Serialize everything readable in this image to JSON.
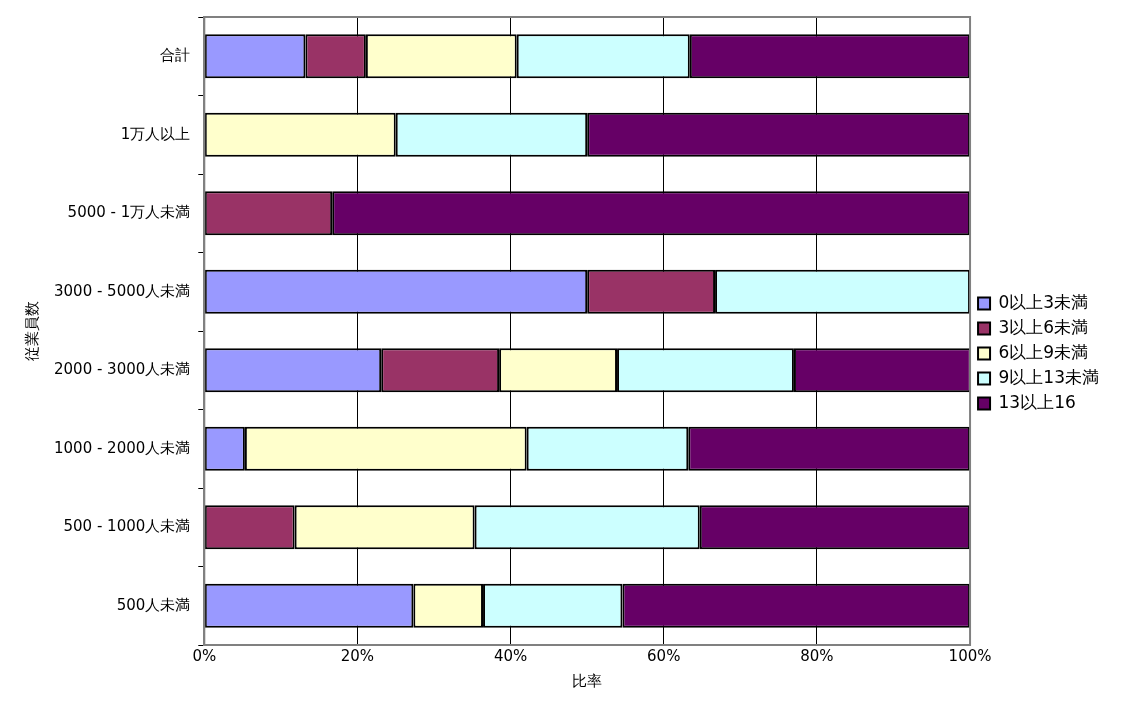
{
  "chart_data": {
    "type": "bar",
    "orientation": "horizontal",
    "stacked": true,
    "xlabel": "比率",
    "ylabel": "従業員数",
    "categories": [
      "合計",
      "1万人以上",
      "5000 - 1万人未満",
      "3000 - 5000人未満",
      "2000 - 3000人未満",
      "1000 - 2000人未満",
      "500 - 1000人未満",
      "500人未満"
    ],
    "series": [
      {
        "name": "0以上3未満",
        "color": "#9999ff",
        "values": [
          13.2,
          0,
          0,
          50,
          23.1,
          5.3,
          0,
          27.3
        ]
      },
      {
        "name": "3以上6未満",
        "color": "#993366",
        "values": [
          7.9,
          0,
          16.7,
          16.7,
          15.4,
          0,
          11.8,
          0
        ]
      },
      {
        "name": "6以上9未満",
        "color": "#ffffcc",
        "values": [
          19.7,
          25,
          0,
          0,
          15.4,
          36.8,
          23.5,
          9.1
        ]
      },
      {
        "name": "9以上13未満",
        "color": "#ccffff",
        "values": [
          22.6,
          25,
          0,
          33.3,
          23.1,
          21.1,
          29.4,
          18.2
        ]
      },
      {
        "name": "13以上16",
        "color": "#660066",
        "values": [
          36.6,
          50,
          83.3,
          0,
          23.1,
          36.8,
          35.3,
          45.4
        ]
      }
    ],
    "xlim": [
      0,
      100
    ],
    "xticks": [
      {
        "value": 0,
        "label": "0%"
      },
      {
        "value": 20,
        "label": "20%"
      },
      {
        "value": 40,
        "label": "40%"
      },
      {
        "value": 60,
        "label": "60%"
      },
      {
        "value": 80,
        "label": "80%"
      },
      {
        "value": 100,
        "label": "100%"
      }
    ],
    "grid": "x",
    "legend": "right"
  }
}
